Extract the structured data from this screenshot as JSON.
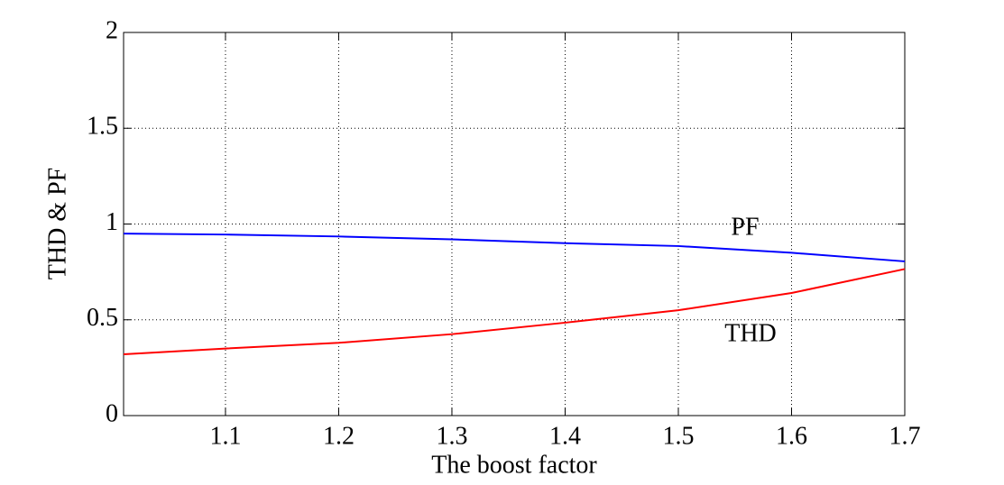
{
  "chart_data": {
    "type": "line",
    "x_label": "The boost factor",
    "y_label": "THD & PF",
    "x": [
      1.01,
      1.1,
      1.2,
      1.3,
      1.4,
      1.5,
      1.6,
      1.7
    ],
    "series": [
      {
        "name": "PF",
        "color": "#0000ff",
        "values": [
          0.95,
          0.945,
          0.935,
          0.92,
          0.9,
          0.885,
          0.85,
          0.805
        ]
      },
      {
        "name": "THD",
        "color": "#ff0000",
        "values": [
          0.32,
          0.35,
          0.38,
          0.425,
          0.485,
          0.55,
          0.64,
          0.765
        ]
      }
    ],
    "xlim": [
      1.01,
      1.7
    ],
    "xticks": [
      1.1,
      1.2,
      1.3,
      1.4,
      1.5,
      1.6,
      1.7
    ],
    "ylim": [
      0,
      2
    ],
    "yticks": [
      0,
      0.5,
      1,
      1.5,
      2
    ],
    "grid": true
  }
}
